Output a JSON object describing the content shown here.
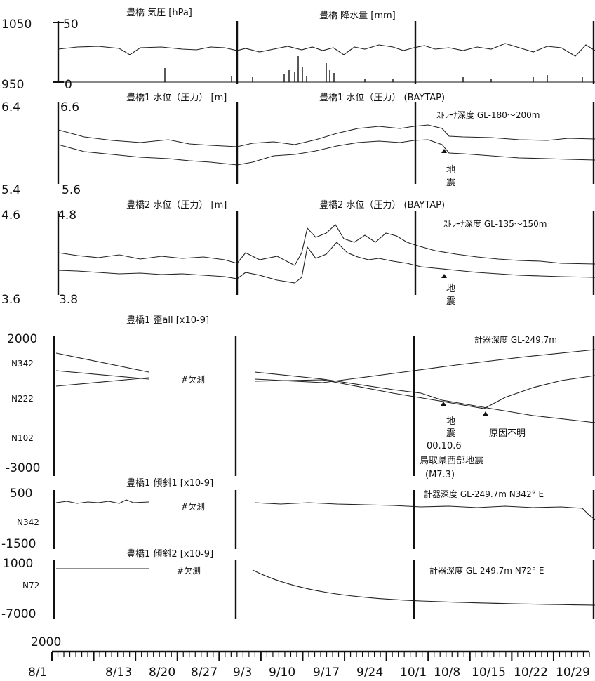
{
  "panels": {
    "p1": {
      "titleL": "豊橋 気圧 [hPa]",
      "titleR": "豊橋 降水量 [mm]",
      "yTopL": "1050",
      "yBotL": "950",
      "yTopR": "50",
      "yBotR": "0"
    },
    "p2": {
      "titleL": "豊橋1 水位（圧力） [m]",
      "titleR": "豊橋1 水位（圧力） (BAYTAP)",
      "note": "ｽﾄﾚｰﾅ深度  GL-180～200m",
      "yTopL": "6.4",
      "yBotL": "5.4",
      "yTopR": "6.6",
      "yBotR": "5.6",
      "quake": "地\n震"
    },
    "p3": {
      "titleL": "豊橋2 水位（圧力） [m]",
      "titleR": "豊橋2 水位（圧力） (BAYTAP)",
      "note": "ｽﾄﾚｰﾅ深度  GL-135～150m",
      "yTopL": "4.6",
      "yBotL": "3.6",
      "yTopR": "4.8",
      "yBotR": "3.8",
      "quake": "地\n震"
    },
    "p4": {
      "title": "豊橋1 歪all [x10-9]",
      "note": "計器深度 GL-249.7m",
      "y": [
        "2000",
        "N342",
        "N222",
        "N102",
        "-3000"
      ],
      "missing": "#欠測",
      "quake1": "地",
      "quake2": "震",
      "unknown": "原因不明",
      "date": "00.10.6",
      "event": "鳥取県西部地震",
      "mag": "(M7.3)"
    },
    "p5": {
      "title": "豊橋1 傾斜1 [x10-9]",
      "note": "計器深度 GL-249.7m N342° E",
      "y": [
        "500",
        "N342",
        "-1500"
      ],
      "missing": "#欠測"
    },
    "p6": {
      "title": "豊橋1 傾斜2 [x10-9]",
      "note": "計器深度 GL-249.7m N72° E",
      "y": [
        "1000",
        "N72",
        "-7000"
      ],
      "missing": "#欠測"
    }
  },
  "xaxis": {
    "year": "2000",
    "ticks": [
      "8/1",
      "8/13",
      "8/20",
      "8/27",
      "9/3",
      "9/10",
      "9/17",
      "9/24",
      "10/1",
      "10/8",
      "10/15",
      "10/22",
      "10/29"
    ]
  }
}
